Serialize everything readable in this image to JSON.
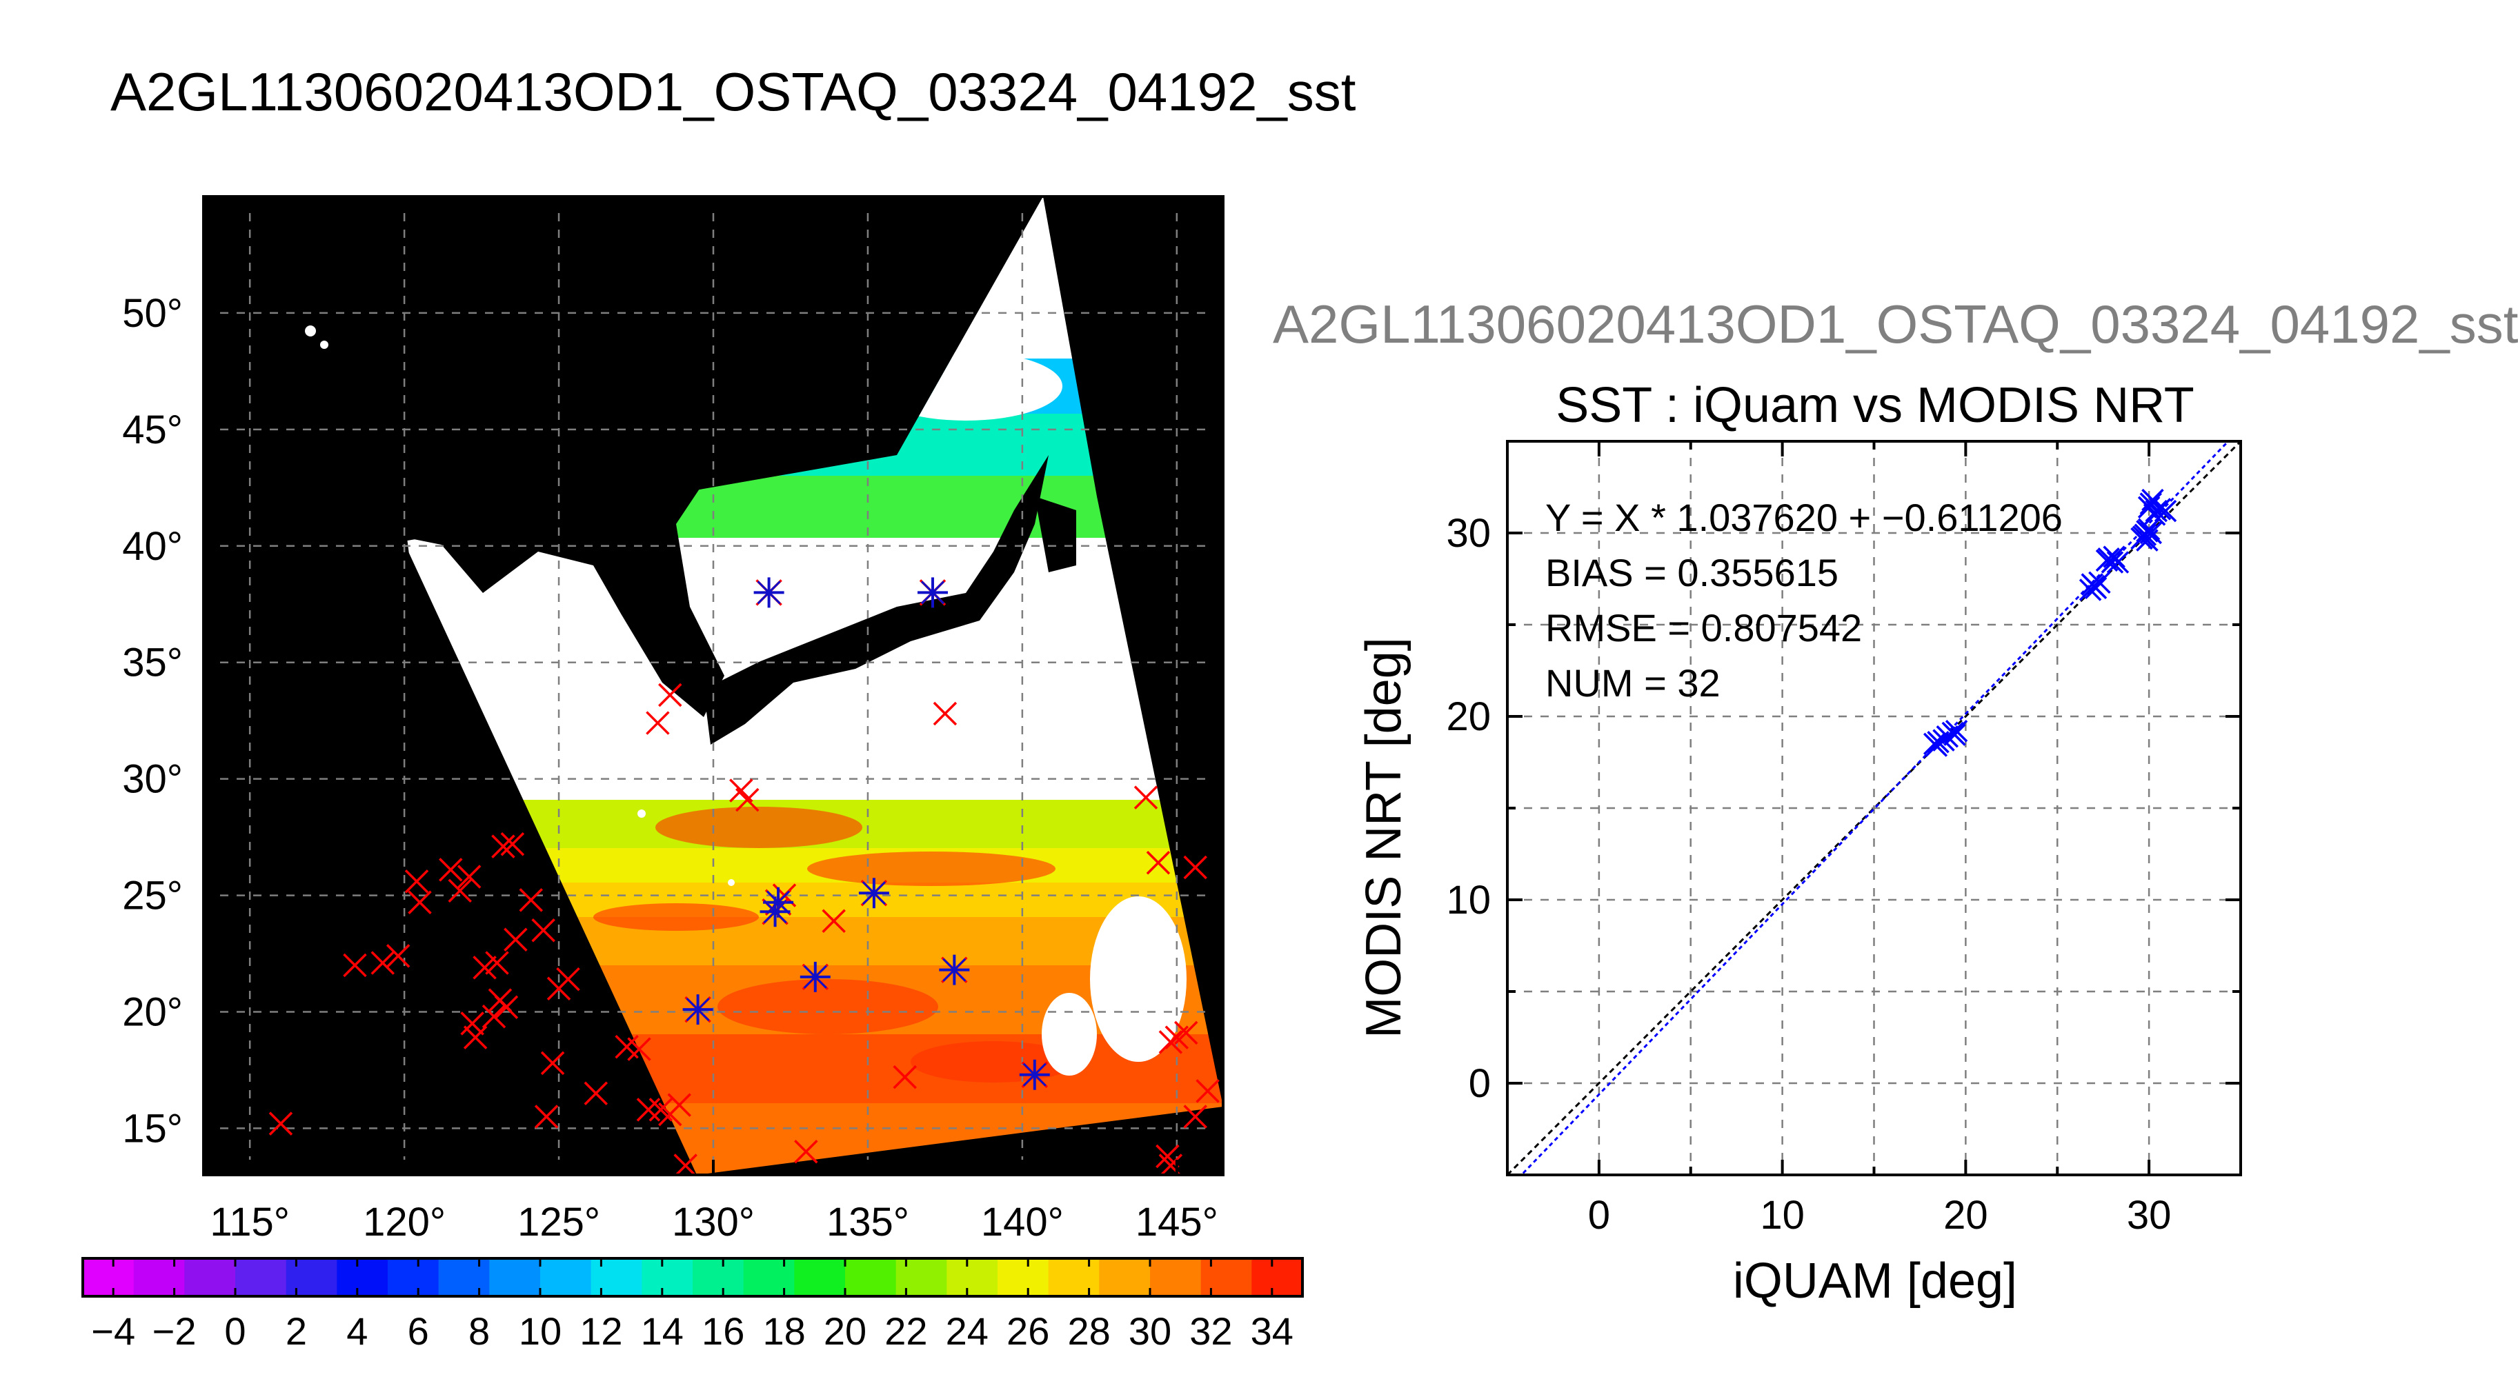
{
  "page_title": "A2GL11306020413OD1_OSTAQ_03324_04192_sst",
  "scatter_header": "A2GL11306020413OD1_OSTAQ_03324_04192_sst",
  "colors": {
    "iquam_mark": "#ff0000",
    "matched_mark": "#1010c8",
    "fit_line": "#0000ff",
    "one_to_one_line": "#000000",
    "land_mask": "#000000",
    "no_data": "#ffffff"
  },
  "chart_data": [
    {
      "type": "heatmap",
      "title": "",
      "xlabel": "",
      "ylabel": "",
      "xlim": [
        113.5,
        146.5
      ],
      "ylim": [
        13,
        55
      ],
      "x_ticks": [
        115,
        120,
        125,
        130,
        135,
        140,
        145
      ],
      "x_tick_labels": [
        "115°",
        "120°",
        "125°",
        "130°",
        "135°",
        "140°",
        "145°"
      ],
      "y_ticks": [
        15,
        20,
        25,
        30,
        35,
        40,
        45,
        50
      ],
      "y_tick_labels": [
        "15°",
        "20°",
        "25°",
        "30°",
        "35°",
        "40°",
        "45°",
        "50°"
      ],
      "grid": true,
      "colorbar": {
        "min": -5,
        "max": 35,
        "step": 2,
        "tick_values": [
          -4,
          -2,
          0,
          2,
          4,
          6,
          8,
          10,
          12,
          14,
          16,
          18,
          20,
          22,
          24,
          26,
          28,
          30,
          32,
          34
        ],
        "tick_labels": [
          "−4",
          "−2",
          "0",
          "2",
          "4",
          "6",
          "8",
          "10",
          "12",
          "14",
          "16",
          "18",
          "20",
          "22",
          "24",
          "26",
          "28",
          "30",
          "32",
          "34"
        ],
        "colors": [
          "#e000ff",
          "#c000f8",
          "#9010f0",
          "#6020f0",
          "#3020f0",
          "#0010f8",
          "#0030ff",
          "#0060ff",
          "#0090ff",
          "#00b8ff",
          "#00e0f0",
          "#00f0c0",
          "#00f090",
          "#00f060",
          "#10f020",
          "#50f000",
          "#90f000",
          "#c8f000",
          "#f0f000",
          "#ffd000",
          "#ffa800",
          "#ff8000",
          "#ff5000",
          "#ff2000"
        ]
      },
      "iquam_points": [
        [
          116,
          15.2
        ],
        [
          118.4,
          22
        ],
        [
          119.3,
          22.1
        ],
        [
          119.8,
          22.4
        ],
        [
          120.4,
          25.6
        ],
        [
          120.5,
          24.7
        ],
        [
          121.5,
          26.1
        ],
        [
          121.8,
          25.2
        ],
        [
          122.1,
          25.8
        ],
        [
          122.2,
          19.5
        ],
        [
          122.3,
          18.9
        ],
        [
          122.6,
          21.9
        ],
        [
          122.9,
          19.8
        ],
        [
          123,
          22.1
        ],
        [
          123.1,
          20.5
        ],
        [
          123.3,
          20.2
        ],
        [
          123.2,
          27.1
        ],
        [
          123.5,
          27.2
        ],
        [
          123.6,
          23.1
        ],
        [
          124.1,
          24.8
        ],
        [
          124.5,
          23.5
        ],
        [
          124.8,
          17.8
        ],
        [
          124.6,
          15.5
        ],
        [
          125,
          21
        ],
        [
          125.3,
          21.4
        ],
        [
          126.2,
          16.5
        ],
        [
          127.2,
          18.5
        ],
        [
          127.6,
          18.4
        ],
        [
          127.9,
          15.8
        ],
        [
          128.3,
          15.8
        ],
        [
          128.6,
          15.6
        ],
        [
          128.9,
          16
        ],
        [
          129.1,
          13.4
        ],
        [
          128.2,
          32.4
        ],
        [
          128.6,
          33.6
        ],
        [
          130.9,
          29.5
        ],
        [
          131.1,
          29.1
        ],
        [
          132,
          24.3
        ],
        [
          132.3,
          25
        ],
        [
          133.9,
          23.9
        ],
        [
          133,
          14
        ],
        [
          136.2,
          17.2
        ],
        [
          137.5,
          32.8
        ],
        [
          144,
          29.2
        ],
        [
          144.4,
          26.4
        ],
        [
          144.8,
          18.7
        ],
        [
          145,
          18.9
        ],
        [
          145.3,
          19.1
        ],
        [
          145.6,
          26.2
        ],
        [
          145.6,
          15.5
        ],
        [
          146,
          16.6
        ],
        [
          144.7,
          13.8
        ],
        [
          144.8,
          13.4
        ]
      ],
      "matched_points": [
        [
          131.8,
          38
        ],
        [
          137.1,
          38
        ],
        [
          132.1,
          24.7
        ],
        [
          135.2,
          25.1
        ],
        [
          133.3,
          21.5
        ],
        [
          137.8,
          21.8
        ],
        [
          129.5,
          20.1
        ],
        [
          140.4,
          17.3
        ],
        [
          132,
          24.3
        ]
      ]
    },
    {
      "type": "scatter",
      "title": "SST : iQuam vs MODIS NRT",
      "xlabel": "iQUAM [deg]",
      "ylabel": "MODIS NRT [deg]",
      "xlim": [
        -5,
        35
      ],
      "ylim": [
        -5,
        35
      ],
      "x_ticks": [
        0,
        10,
        20,
        30
      ],
      "y_ticks": [
        0,
        10,
        20,
        30
      ],
      "grid": true,
      "annotations": {
        "fit": "Y = X * 1.037620 + −0.611206",
        "bias": "BIAS = 0.355615",
        "rmse": "RMSE = 0.807542",
        "num": "NUM = 32"
      },
      "fit": {
        "slope": 1.03762,
        "intercept": -0.611206
      },
      "points": [
        [
          18.3,
          18.5
        ],
        [
          18.5,
          18.6
        ],
        [
          18.8,
          18.7
        ],
        [
          19,
          18.9
        ],
        [
          19.3,
          19.1
        ],
        [
          19.5,
          19.2
        ],
        [
          26.8,
          26.9
        ],
        [
          26.9,
          27.2
        ],
        [
          27.1,
          27.0
        ],
        [
          27.3,
          27.3
        ],
        [
          27.7,
          28.5
        ],
        [
          27.8,
          28.6
        ],
        [
          28.0,
          28.4
        ],
        [
          28.1,
          28.7
        ],
        [
          28.3,
          28.4
        ],
        [
          29.6,
          29.7
        ],
        [
          29.8,
          29.9
        ],
        [
          29.9,
          30.1
        ],
        [
          29.7,
          29.8
        ],
        [
          30.0,
          30.2
        ],
        [
          30.1,
          31.6
        ],
        [
          30.2,
          31.8
        ],
        [
          30.0,
          31.4
        ],
        [
          30.4,
          31.2
        ],
        [
          30.6,
          31.3
        ],
        [
          30.9,
          31.2
        ],
        [
          30.3,
          31.0
        ],
        [
          29.9,
          29.6
        ],
        [
          30.1,
          30.0
        ],
        [
          27.0,
          27.1
        ],
        [
          18.4,
          18.4
        ],
        [
          19.4,
          19.0
        ]
      ]
    }
  ]
}
